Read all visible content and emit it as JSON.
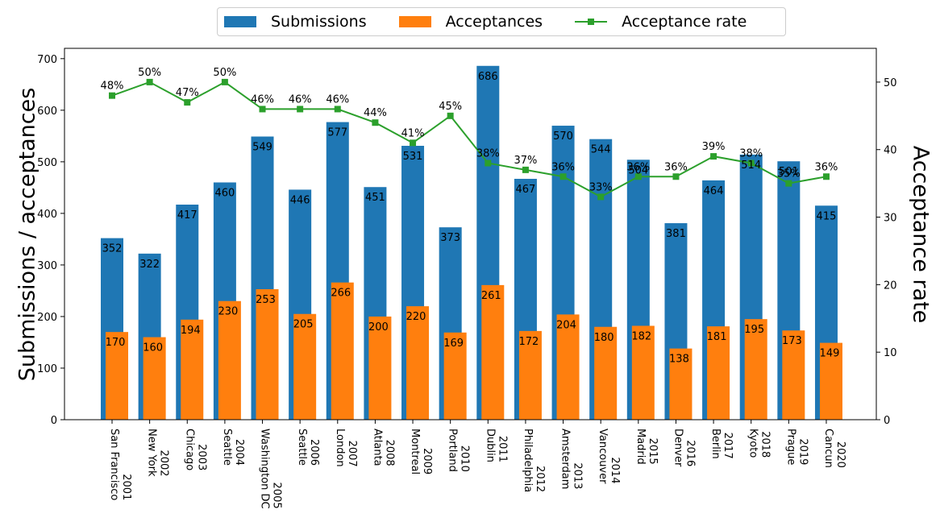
{
  "chart_data": {
    "type": "bar",
    "categories": [
      "2001\nSan Francisco",
      "2002\nNew York",
      "2003\nChicago",
      "2004\nSeattle",
      "2005\nWashington DC",
      "2006\nSeattle",
      "2007\nLondon",
      "2008\nAtlanta",
      "2009\nMontreal",
      "2010\nPortland",
      "2011\nDublin",
      "2012\nPhiladelphia",
      "2013\nAmsterdam",
      "2014\nVancouver",
      "2015\nMadrid",
      "2016\nDenver",
      "2017\nBerlin",
      "2018\nKyoto",
      "2019\nPrague",
      "2020\nCancun"
    ],
    "series": [
      {
        "name": "Submissions",
        "type": "bar",
        "axis": "left",
        "values": [
          352,
          322,
          417,
          460,
          549,
          446,
          577,
          451,
          531,
          373,
          686,
          467,
          570,
          544,
          504,
          381,
          464,
          514,
          501,
          415
        ]
      },
      {
        "name": "Acceptances",
        "type": "bar",
        "axis": "left",
        "values": [
          170,
          160,
          194,
          230,
          253,
          205,
          266,
          200,
          220,
          169,
          261,
          172,
          204,
          180,
          182,
          138,
          181,
          195,
          173,
          149
        ]
      },
      {
        "name": "Acceptance rate",
        "type": "line",
        "axis": "right",
        "values": [
          48,
          50,
          47,
          50,
          46,
          46,
          46,
          44,
          41,
          45,
          38,
          37,
          36,
          33,
          36,
          36,
          39,
          38,
          35,
          36
        ]
      }
    ],
    "title": "",
    "xlabel": "",
    "ylabel": "Submissions / acceptances",
    "ylabel_right": "Acceptance rate",
    "ylim": [
      0,
      720
    ],
    "ylim_right": [
      0,
      55
    ],
    "yticks": [
      0,
      100,
      200,
      300,
      400,
      500,
      600,
      700
    ],
    "yticks_right": [
      0,
      10,
      20,
      30,
      40,
      50
    ],
    "grid": false,
    "legend_placement": "top-center",
    "colors": {
      "Submissions": "#1f77b4",
      "Acceptances": "#ff7f0e",
      "Acceptance rate": "#2ca02c"
    }
  }
}
